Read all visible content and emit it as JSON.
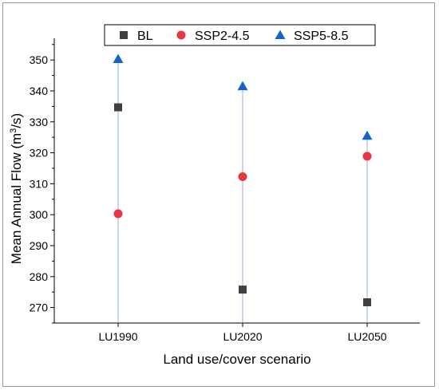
{
  "chart_data": {
    "type": "scatter",
    "categories": [
      "LU1990",
      "LU2020",
      "LU2050"
    ],
    "series": [
      {
        "name": "BL",
        "values": [
          334.7,
          275.8,
          271.7
        ],
        "color": "#404040",
        "marker": "square"
      },
      {
        "name": "SSP2-4.5",
        "values": [
          300.3,
          312.3,
          318.9
        ],
        "color": "#e8363f",
        "marker": "circle"
      },
      {
        "name": "SSP5-8.5",
        "values": [
          350.3,
          341.5,
          325.5
        ],
        "color": "#1565c9",
        "marker": "triangle"
      }
    ],
    "xlabel": "Land use/cover scenario",
    "ylabel_main": "Mean Annual Flow (m",
    "ylabel_sup": "3",
    "ylabel_end": "/s)",
    "ylim": [
      265,
      357
    ],
    "yticks": [
      270,
      280,
      290,
      300,
      310,
      320,
      330,
      340,
      350
    ],
    "grid": false,
    "legend_position": "top",
    "drop_line_color": "#8fb4e6"
  }
}
